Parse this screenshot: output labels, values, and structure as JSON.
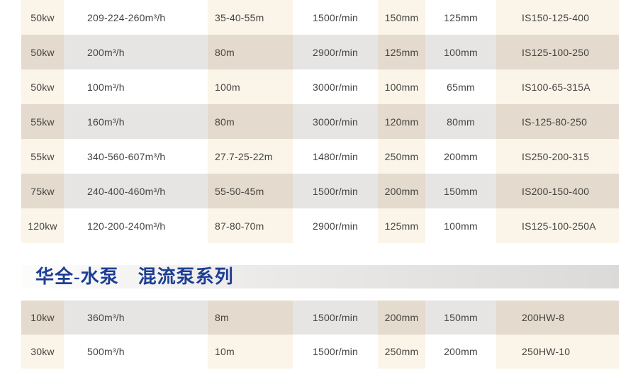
{
  "colors": {
    "row_light_warm": "#fbf5e9",
    "row_light_cool": "#ffffff",
    "row_dark_warm": "#e4dacd",
    "row_dark_cool": "#e7e5e3",
    "cell_text": "#454441",
    "section_title_blue": "#1d3e94",
    "band_gradient_from": "#fdfdfc",
    "band_gradient_to": "#dbdad9"
  },
  "columns": {
    "semantics": [
      "power",
      "flow-rate",
      "head",
      "rotation-speed",
      "outlet-diameter",
      "inlet-diameter",
      "model"
    ]
  },
  "tables": {
    "is_series": {
      "rows": [
        [
          "50kw",
          "209-224-260m³/h",
          "35-40-55m",
          "1500r/min",
          "150mm",
          "125mm",
          "IS150-125-400"
        ],
        [
          "50kw",
          "200m³/h",
          "80m",
          "2900r/min",
          "125mm",
          "100mm",
          "IS125-100-250"
        ],
        [
          "50kw",
          "100m³/h",
          "100m",
          "3000r/min",
          "100mm",
          "65mm",
          "IS100-65-315A"
        ],
        [
          "55kw",
          "160m³/h",
          "80m",
          "3000r/min",
          "120mm",
          "80mm",
          "IS-125-80-250"
        ],
        [
          "55kw",
          "340-560-607m³/h",
          "27.7-25-22m",
          "1480r/min",
          "250mm",
          "200mm",
          "IS250-200-315"
        ],
        [
          "75kw",
          "240-400-460m³/h",
          "55-50-45m",
          "1500r/min",
          "200mm",
          "150mm",
          "IS200-150-400"
        ],
        [
          "120kw",
          "120-200-240m³/h",
          "87-80-70m",
          "2900r/min",
          "125mm",
          "100mm",
          "IS125-100-250A"
        ]
      ]
    },
    "hw_series": {
      "rows": [
        [
          "10kw",
          "360m³/h",
          "8m",
          "1500r/min",
          "200mm",
          "150mm",
          "200HW-8"
        ],
        [
          "30kw",
          "500m³/h",
          "10m",
          "1500r/min",
          "250mm",
          "200mm",
          "250HW-10"
        ]
      ]
    }
  },
  "section_header": {
    "title": "华全-水泵　混流泵系列"
  }
}
